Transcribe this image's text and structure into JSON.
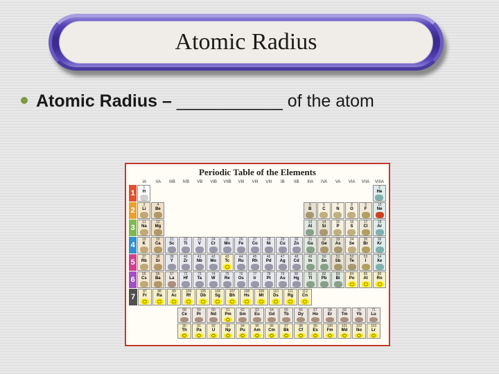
{
  "title": "Atomic Radius",
  "bullet": {
    "bold": "Atomic Radius – ",
    "blank": "___________",
    "rest": " of the atom"
  },
  "ptable": {
    "title": "Periodic Table of the Elements",
    "groups_top_left": [
      "IA",
      "IIA"
    ],
    "groups_top_mid": [
      "IIIB",
      "IVB",
      "VB",
      "VIB",
      "VIIB",
      "VIII",
      "VIII",
      "VIII",
      "IB",
      "IIB"
    ],
    "groups_top_right": [
      "IIIA",
      "IVA",
      "VA",
      "VIA",
      "VIIA",
      "VIIIA"
    ],
    "rows": [
      {
        "n": 1,
        "cls": "rn1",
        "left": [
          {
            "s": "H",
            "n": 1,
            "c": "c-h"
          }
        ],
        "mid": [],
        "right": [
          {
            "s": "He",
            "n": 2,
            "c": "c-ng"
          }
        ]
      },
      {
        "n": 2,
        "cls": "rn2",
        "left": [
          {
            "s": "Li",
            "n": 3,
            "c": "c-alk"
          },
          {
            "s": "Be",
            "n": 4,
            "c": "c-ae"
          }
        ],
        "mid": [],
        "right": [
          {
            "s": "B",
            "n": 5,
            "c": "c-ml"
          },
          {
            "s": "C",
            "n": 6,
            "c": "c-nm"
          },
          {
            "s": "N",
            "n": 7,
            "c": "c-nm"
          },
          {
            "s": "O",
            "n": 8,
            "c": "c-nm"
          },
          {
            "s": "F",
            "n": 9,
            "c": "c-hal"
          },
          {
            "s": "Ne",
            "n": 10,
            "c": "c-ng c-ng-ne"
          }
        ]
      },
      {
        "n": 3,
        "cls": "rn3",
        "left": [
          {
            "s": "Na",
            "n": 11,
            "c": "c-alk"
          },
          {
            "s": "Mg",
            "n": 12,
            "c": "c-ae"
          }
        ],
        "mid": [],
        "right": [
          {
            "s": "Al",
            "n": 13,
            "c": "c-pm"
          },
          {
            "s": "Si",
            "n": 14,
            "c": "c-ml"
          },
          {
            "s": "P",
            "n": 15,
            "c": "c-nm"
          },
          {
            "s": "S",
            "n": 16,
            "c": "c-nm"
          },
          {
            "s": "Cl",
            "n": 17,
            "c": "c-hal"
          },
          {
            "s": "Ar",
            "n": 18,
            "c": "c-ng"
          }
        ]
      },
      {
        "n": 4,
        "cls": "rn4",
        "left": [
          {
            "s": "K",
            "n": 19,
            "c": "c-alk"
          },
          {
            "s": "Ca",
            "n": 20,
            "c": "c-ae"
          }
        ],
        "mid": [
          {
            "s": "Sc",
            "n": 21,
            "c": "c-tm"
          },
          {
            "s": "Ti",
            "n": 22,
            "c": "c-tm"
          },
          {
            "s": "V",
            "n": 23,
            "c": "c-tm"
          },
          {
            "s": "Cr",
            "n": 24,
            "c": "c-tm"
          },
          {
            "s": "Mn",
            "n": 25,
            "c": "c-tm"
          },
          {
            "s": "Fe",
            "n": 26,
            "c": "c-tm"
          },
          {
            "s": "Co",
            "n": 27,
            "c": "c-tm"
          },
          {
            "s": "Ni",
            "n": 28,
            "c": "c-tm"
          },
          {
            "s": "Cu",
            "n": 29,
            "c": "c-tm"
          },
          {
            "s": "Zn",
            "n": 30,
            "c": "c-tm"
          }
        ],
        "right": [
          {
            "s": "Ga",
            "n": 31,
            "c": "c-pm"
          },
          {
            "s": "Ge",
            "n": 32,
            "c": "c-ml"
          },
          {
            "s": "As",
            "n": 33,
            "c": "c-ml"
          },
          {
            "s": "Se",
            "n": 34,
            "c": "c-nm"
          },
          {
            "s": "Br",
            "n": 35,
            "c": "c-hal"
          },
          {
            "s": "Kr",
            "n": 36,
            "c": "c-ng"
          }
        ]
      },
      {
        "n": 5,
        "cls": "rn5",
        "left": [
          {
            "s": "Rb",
            "n": 37,
            "c": "c-alk"
          },
          {
            "s": "Sr",
            "n": 38,
            "c": "c-ae"
          }
        ],
        "mid": [
          {
            "s": "Y",
            "n": 39,
            "c": "c-tm"
          },
          {
            "s": "Zr",
            "n": 40,
            "c": "c-tm"
          },
          {
            "s": "Nb",
            "n": 41,
            "c": "c-tm"
          },
          {
            "s": "Mo",
            "n": 42,
            "c": "c-tm"
          },
          {
            "s": "Tc",
            "n": 43,
            "c": "c-ac"
          },
          {
            "s": "Ru",
            "n": 44,
            "c": "c-tm"
          },
          {
            "s": "Rh",
            "n": 45,
            "c": "c-tm"
          },
          {
            "s": "Pd",
            "n": 46,
            "c": "c-tm"
          },
          {
            "s": "Ag",
            "n": 47,
            "c": "c-tm"
          },
          {
            "s": "Cd",
            "n": 48,
            "c": "c-tm"
          }
        ],
        "right": [
          {
            "s": "In",
            "n": 49,
            "c": "c-pm"
          },
          {
            "s": "Sn",
            "n": 50,
            "c": "c-pm"
          },
          {
            "s": "Sb",
            "n": 51,
            "c": "c-ml"
          },
          {
            "s": "Te",
            "n": 52,
            "c": "c-ml"
          },
          {
            "s": "I",
            "n": 53,
            "c": "c-hal"
          },
          {
            "s": "Xe",
            "n": 54,
            "c": "c-ng"
          }
        ]
      },
      {
        "n": 6,
        "cls": "rn6",
        "left": [
          {
            "s": "Cs",
            "n": 55,
            "c": "c-alk"
          },
          {
            "s": "Ba",
            "n": 56,
            "c": "c-ae"
          }
        ],
        "mid": [
          {
            "s": "La",
            "n": 57,
            "c": "c-la"
          },
          {
            "s": "Hf",
            "n": 72,
            "c": "c-tm"
          },
          {
            "s": "Ta",
            "n": 73,
            "c": "c-tm"
          },
          {
            "s": "W",
            "n": 74,
            "c": "c-tm"
          },
          {
            "s": "Re",
            "n": 75,
            "c": "c-tm"
          },
          {
            "s": "Os",
            "n": 76,
            "c": "c-tm"
          },
          {
            "s": "Ir",
            "n": 77,
            "c": "c-tm"
          },
          {
            "s": "Pt",
            "n": 78,
            "c": "c-tm"
          },
          {
            "s": "Au",
            "n": 79,
            "c": "c-tm"
          },
          {
            "s": "Hg",
            "n": 80,
            "c": "c-tm"
          }
        ],
        "right": [
          {
            "s": "Tl",
            "n": 81,
            "c": "c-pm"
          },
          {
            "s": "Pb",
            "n": 82,
            "c": "c-pm"
          },
          {
            "s": "Bi",
            "n": 83,
            "c": "c-pm"
          },
          {
            "s": "Po",
            "n": 84,
            "c": "c-ac"
          },
          {
            "s": "At",
            "n": 85,
            "c": "c-ac"
          },
          {
            "s": "Rn",
            "n": 86,
            "c": "c-ac"
          }
        ]
      },
      {
        "n": 7,
        "cls": "rn7",
        "left": [
          {
            "s": "Fr",
            "n": 87,
            "c": "c-ac"
          },
          {
            "s": "Ra",
            "n": 88,
            "c": "c-ac"
          }
        ],
        "mid": [
          {
            "s": "Ac",
            "n": 89,
            "c": "c-ac"
          },
          {
            "s": "Rf",
            "n": 104,
            "c": "c-ac"
          },
          {
            "s": "Db",
            "n": 105,
            "c": "c-ac"
          },
          {
            "s": "Sg",
            "n": 106,
            "c": "c-ac"
          },
          {
            "s": "Bh",
            "n": 107,
            "c": "c-ac"
          },
          {
            "s": "Hs",
            "n": 108,
            "c": "c-ac"
          },
          {
            "s": "Mt",
            "n": 109,
            "c": "c-ac"
          },
          {
            "s": "Ds",
            "n": 110,
            "c": "c-ac"
          },
          {
            "s": "Rg",
            "n": 111,
            "c": "c-ac"
          },
          {
            "s": "Cn",
            "n": 112,
            "c": "c-ac"
          }
        ],
        "right": []
      }
    ],
    "fblock": [
      [
        {
          "s": "Ce",
          "n": 58,
          "c": "c-la"
        },
        {
          "s": "Pr",
          "n": 59,
          "c": "c-la"
        },
        {
          "s": "Nd",
          "n": 60,
          "c": "c-la"
        },
        {
          "s": "Pm",
          "n": 61,
          "c": "c-ac"
        },
        {
          "s": "Sm",
          "n": 62,
          "c": "c-la"
        },
        {
          "s": "Eu",
          "n": 63,
          "c": "c-la"
        },
        {
          "s": "Gd",
          "n": 64,
          "c": "c-la"
        },
        {
          "s": "Tb",
          "n": 65,
          "c": "c-la"
        },
        {
          "s": "Dy",
          "n": 66,
          "c": "c-la"
        },
        {
          "s": "Ho",
          "n": 67,
          "c": "c-la"
        },
        {
          "s": "Er",
          "n": 68,
          "c": "c-la"
        },
        {
          "s": "Tm",
          "n": 69,
          "c": "c-la"
        },
        {
          "s": "Yb",
          "n": 70,
          "c": "c-la"
        },
        {
          "s": "Lu",
          "n": 71,
          "c": "c-la"
        }
      ],
      [
        {
          "s": "Th",
          "n": 90,
          "c": "c-ac"
        },
        {
          "s": "Pa",
          "n": 91,
          "c": "c-ac"
        },
        {
          "s": "U",
          "n": 92,
          "c": "c-ac"
        },
        {
          "s": "Np",
          "n": 93,
          "c": "c-ac"
        },
        {
          "s": "Pu",
          "n": 94,
          "c": "c-ac"
        },
        {
          "s": "Am",
          "n": 95,
          "c": "c-ac"
        },
        {
          "s": "Cm",
          "n": 96,
          "c": "c-ac"
        },
        {
          "s": "Bk",
          "n": 97,
          "c": "c-ac"
        },
        {
          "s": "Cf",
          "n": 98,
          "c": "c-ac"
        },
        {
          "s": "Es",
          "n": 99,
          "c": "c-ac"
        },
        {
          "s": "Fm",
          "n": 100,
          "c": "c-ac"
        },
        {
          "s": "Md",
          "n": 101,
          "c": "c-ac"
        },
        {
          "s": "No",
          "n": 102,
          "c": "c-ac"
        },
        {
          "s": "Lr",
          "n": 103,
          "c": "c-ac"
        }
      ]
    ]
  }
}
